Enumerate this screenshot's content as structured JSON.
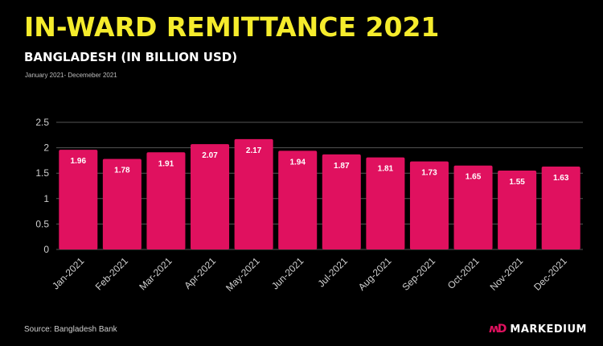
{
  "header": {
    "title": "IN-WARD REMITTANCE 2021",
    "subtitle": "BANGLADESH (IN BILLION USD)",
    "date_range": "January 2021- Decemeber 2021"
  },
  "footer": {
    "source": "Source: Bangladesh Bank",
    "brand_logo": "ʍD",
    "brand_name": "MARKEDIUM"
  },
  "colors": {
    "title": "#f5ec2c",
    "bar": "#e0115f",
    "background": "#000000",
    "axis_text": "#cfcfcf",
    "grid": "#555555"
  },
  "chart_data": {
    "type": "bar",
    "categories": [
      "Jan-2021",
      "Feb-2021",
      "Mar-2021",
      "Apr-2021",
      "May-2021",
      "Jun-2021",
      "Jul-2021",
      "Aug-2021",
      "Sep-2021",
      "Oct-2021",
      "Nov-2021",
      "Dec-2021"
    ],
    "values": [
      1.96,
      1.78,
      1.91,
      2.07,
      2.17,
      1.94,
      1.87,
      1.81,
      1.73,
      1.65,
      1.55,
      1.63
    ],
    "data_labels": [
      "1.96",
      "1.78",
      "1.91",
      "2.07",
      "2.17",
      "1.94",
      "1.87",
      "1.81",
      "1.73",
      "1.65",
      "1.55",
      "1.63"
    ],
    "y_ticks": [
      "0",
      "0.5",
      "1",
      "1.5",
      "2",
      "2.5"
    ],
    "ylim": [
      0,
      2.5
    ],
    "grid": true,
    "legend": "none"
  }
}
